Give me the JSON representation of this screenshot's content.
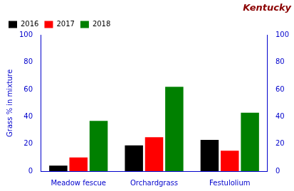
{
  "chart_data": {
    "type": "bar",
    "title": "Kentucky",
    "categories": [
      "Meadow fescue",
      "Orchardgrass",
      "Festulolium"
    ],
    "series": [
      {
        "name": "2016",
        "color": "#000000",
        "values": [
          4,
          19,
          23
        ]
      },
      {
        "name": "2017",
        "color": "#ff0000",
        "values": [
          10,
          25,
          15
        ]
      },
      {
        "name": "2018",
        "color": "#008000",
        "values": [
          37,
          62,
          43
        ]
      }
    ],
    "ylabel": "Grass % in mixture",
    "ylim": [
      0,
      100
    ],
    "yticks": [
      0,
      20,
      40,
      60,
      80,
      100
    ],
    "y2lim": [
      0,
      100
    ],
    "y2ticks": [
      0,
      20,
      40,
      60,
      80,
      100
    ],
    "grid": false,
    "legend": "upper left"
  }
}
